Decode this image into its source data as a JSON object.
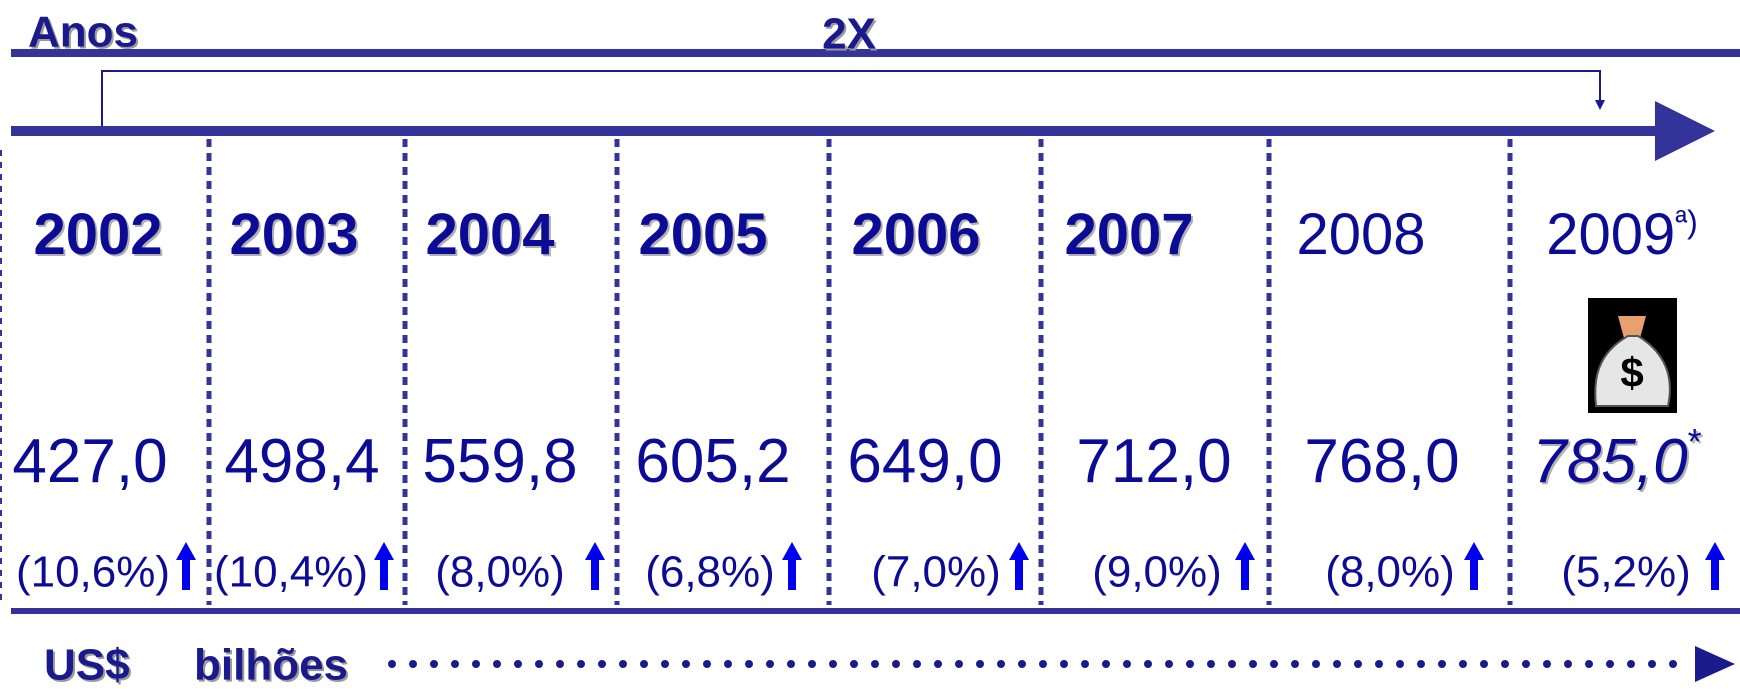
{
  "header": {
    "label": "Anos",
    "factor": "2X"
  },
  "columns": [
    {
      "year": "2002",
      "value": "427,0",
      "growth": "(10,6%)"
    },
    {
      "year": "2003",
      "value": "498,4",
      "growth": "(10,4%)"
    },
    {
      "year": "2004",
      "value": "559,8",
      "growth": "(8,0%)"
    },
    {
      "year": "2005",
      "value": "605,2",
      "growth": "(6,8%)"
    },
    {
      "year": "2006",
      "value": "649,0",
      "growth": "(7,0%)"
    },
    {
      "year": "2007",
      "value": "712,0",
      "growth": "(9,0%)"
    },
    {
      "year": "2008",
      "value": "768,0",
      "growth": "(8,0%)"
    },
    {
      "year": "2009",
      "year_note": "ª)",
      "value": "785,0",
      "value_note": "*",
      "growth": "(5,2%)"
    }
  ],
  "footer": {
    "currency": "US$",
    "scale": "bilhões"
  }
}
